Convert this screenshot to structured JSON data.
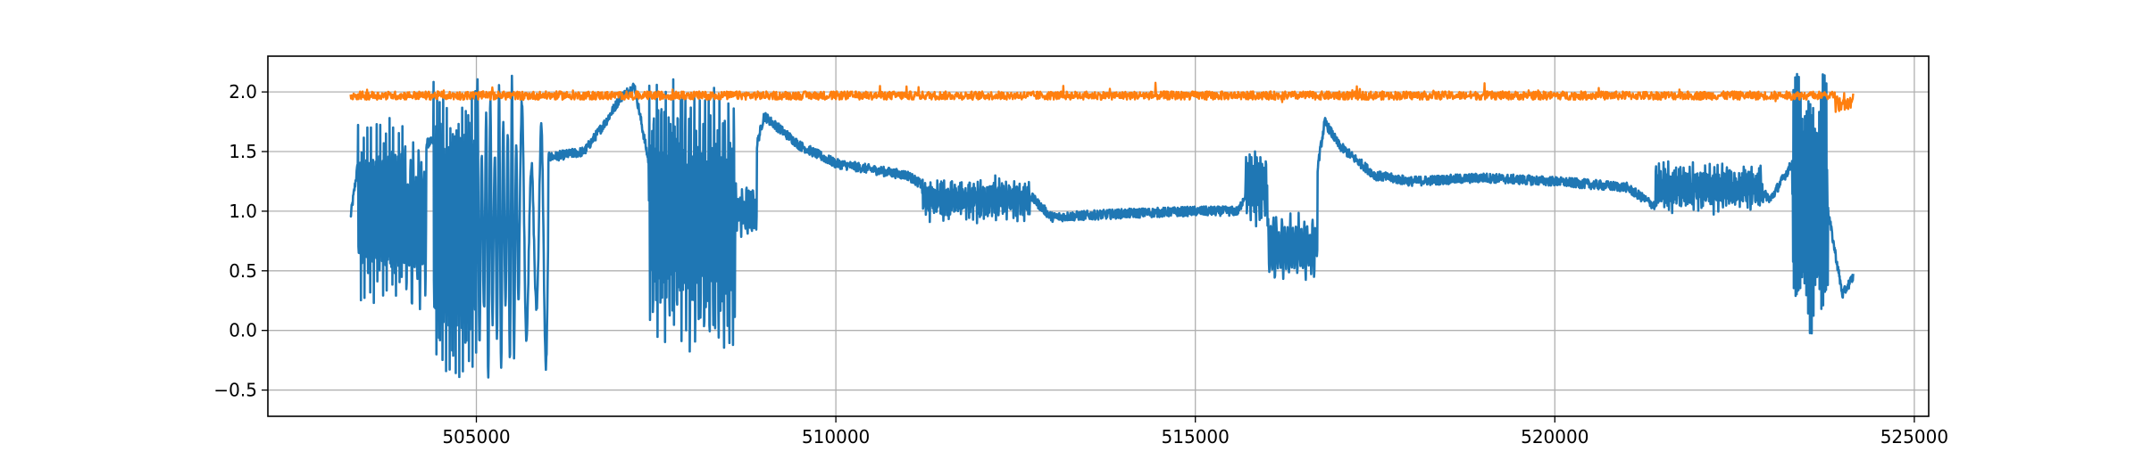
{
  "chart_data": {
    "type": "line",
    "title": "",
    "xlabel": "",
    "ylabel": "",
    "xlim": [
      502100,
      525200
    ],
    "ylim": [
      -0.72,
      2.3
    ],
    "grid": true,
    "legend": "none",
    "xticks": [
      505000,
      510000,
      515000,
      520000,
      525000
    ],
    "yticks": [
      -0.5,
      0.0,
      0.5,
      1.0,
      1.5,
      2.0
    ],
    "xtick_labels": [
      "505000",
      "510000",
      "515000",
      "520000",
      "525000"
    ],
    "ytick_labels": [
      "−0.5",
      "0.0",
      "0.5",
      "1.0",
      "1.5",
      "2.0"
    ],
    "series": [
      {
        "color": "#1f77b4",
        "x_range": [
          503250,
          524150
        ],
        "noise": 0.04,
        "base": [
          [
            503250,
            0.95
          ],
          [
            503400,
            1.6
          ],
          [
            503900,
            1.5
          ],
          [
            504500,
            1.6
          ],
          [
            505000,
            1.4
          ],
          [
            505500,
            1.3
          ],
          [
            506000,
            1.45
          ],
          [
            506500,
            1.5
          ],
          [
            506800,
            1.75
          ],
          [
            507000,
            1.95
          ],
          [
            507200,
            2.05
          ],
          [
            507400,
            1.4
          ],
          [
            507700,
            1.3
          ],
          [
            508000,
            1.25
          ],
          [
            508200,
            1.1
          ],
          [
            508500,
            0.95
          ],
          [
            508800,
            1.3
          ],
          [
            509000,
            1.8
          ],
          [
            509500,
            1.55
          ],
          [
            510000,
            1.4
          ],
          [
            510500,
            1.35
          ],
          [
            511000,
            1.3
          ],
          [
            511500,
            1.1
          ],
          [
            512000,
            1.05
          ],
          [
            512500,
            1.25
          ],
          [
            513000,
            0.95
          ],
          [
            514000,
            0.98
          ],
          [
            515000,
            1.0
          ],
          [
            515600,
            1.0
          ],
          [
            515800,
            1.3
          ],
          [
            516200,
            0.95
          ],
          [
            516500,
            0.6
          ],
          [
            516800,
            1.75
          ],
          [
            517000,
            1.55
          ],
          [
            517500,
            1.3
          ],
          [
            518000,
            1.25
          ],
          [
            519000,
            1.28
          ],
          [
            520000,
            1.25
          ],
          [
            521000,
            1.2
          ],
          [
            521500,
            1.0
          ],
          [
            522000,
            1.2
          ],
          [
            522500,
            1.35
          ],
          [
            523000,
            1.1
          ],
          [
            523300,
            1.4
          ],
          [
            523800,
            1.0
          ],
          [
            524000,
            0.3
          ],
          [
            524150,
            0.45
          ]
        ],
        "osc": [
          [
            503350,
            504000,
            1.0,
            0.75,
            40
          ],
          [
            504000,
            504300,
            0.9,
            0.7,
            8
          ],
          [
            504400,
            505000,
            0.85,
            1.25,
            36
          ],
          [
            505000,
            505600,
            0.85,
            1.25,
            10
          ],
          [
            505600,
            506000,
            0.8,
            1.1,
            3
          ],
          [
            507400,
            507900,
            1.0,
            1.1,
            24
          ],
          [
            507900,
            508650,
            0.9,
            1.1,
            30
          ],
          [
            508600,
            508900,
            1.0,
            0.2,
            10
          ],
          [
            511200,
            512700,
            1.1,
            0.15,
            80
          ],
          [
            515700,
            516000,
            1.2,
            0.3,
            12
          ],
          [
            516000,
            516700,
            0.7,
            0.25,
            18
          ],
          [
            521400,
            522900,
            1.2,
            0.18,
            70
          ],
          [
            523300,
            523800,
            1.08,
            1.1,
            60
          ]
        ]
      },
      {
        "color": "#ff7f0e",
        "x_range": [
          503250,
          524150
        ],
        "base_value": 1.97,
        "noise": 0.035
      }
    ]
  }
}
